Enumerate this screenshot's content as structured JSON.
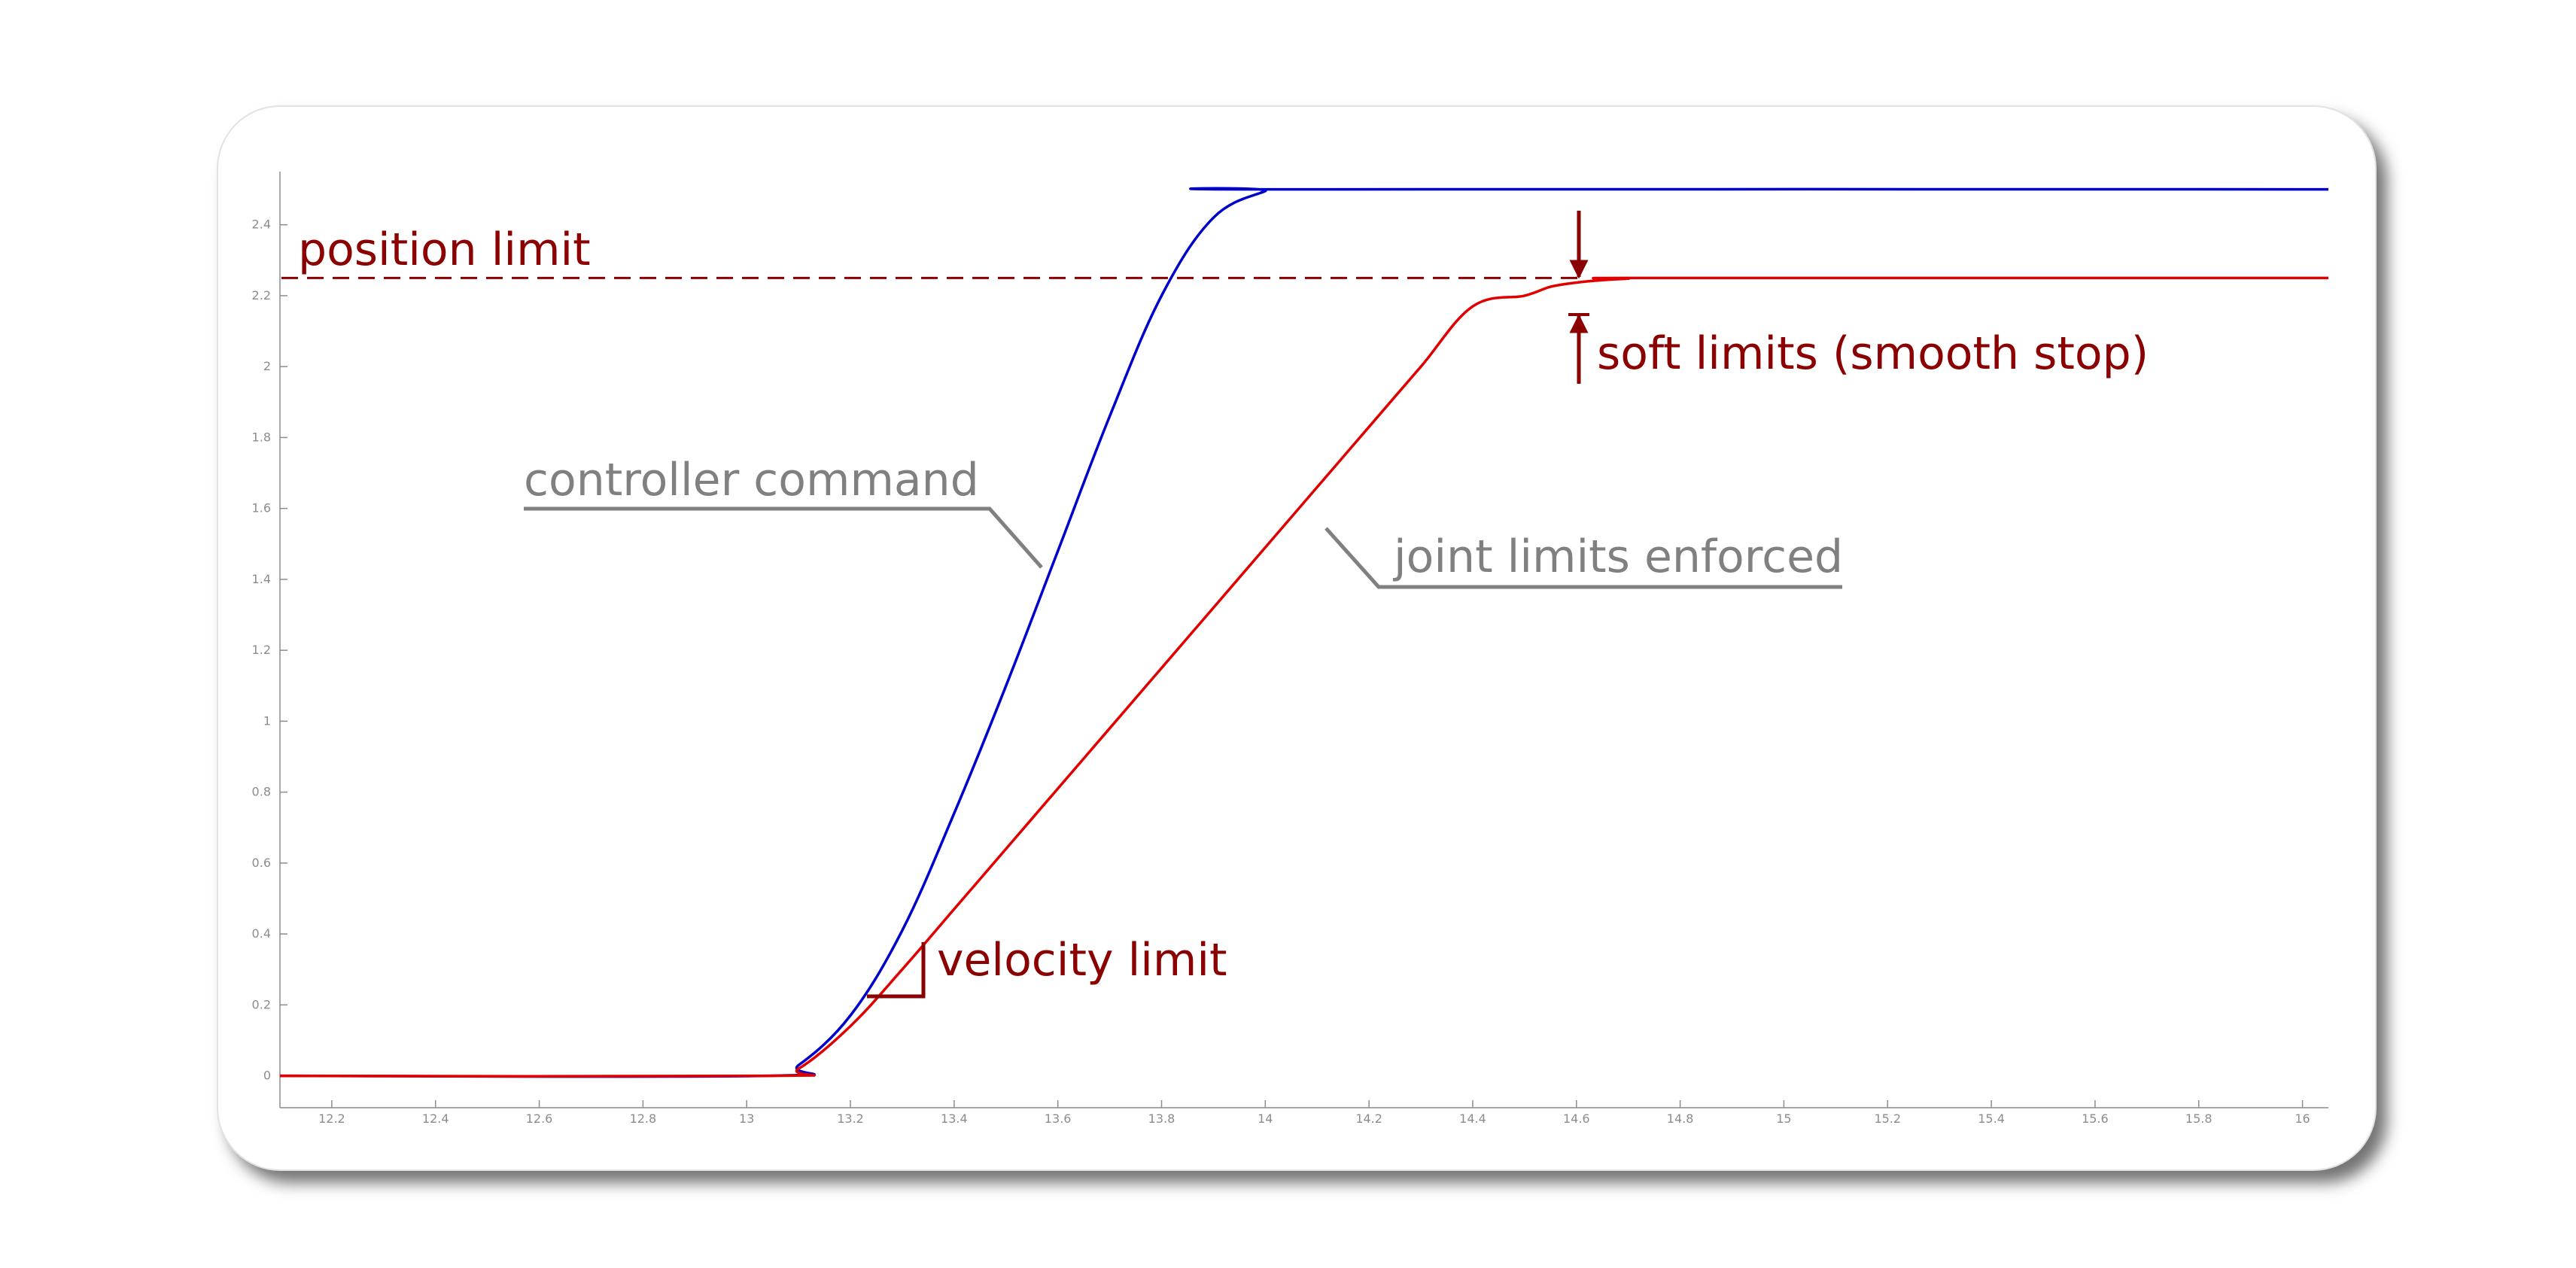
{
  "chart_data": {
    "type": "line",
    "title": "",
    "xlabel": "",
    "ylabel": "",
    "xlim": [
      12.1,
      16.05
    ],
    "ylim": [
      -0.09,
      2.55
    ],
    "grid": false,
    "x_ticks": [
      "12.2",
      "12.4",
      "12.6",
      "12.8",
      "13",
      "13.2",
      "13.4",
      "13.6",
      "13.8",
      "14",
      "14.2",
      "14.4",
      "14.6",
      "14.8",
      "15",
      "15.2",
      "15.4",
      "15.6",
      "15.8",
      "16"
    ],
    "y_ticks": [
      "0",
      "0.2",
      "0.4",
      "0.6",
      "0.8",
      "1",
      "1.2",
      "1.4",
      "1.6",
      "1.8",
      "2",
      "2.2",
      "2.4"
    ],
    "colors": {
      "command": "#0000cc",
      "enforced": "#e00000",
      "annotation": "#8b0000",
      "leader": "#808080"
    },
    "series": [
      {
        "key": "command",
        "x": [
          12.1,
          13.04,
          13.1,
          13.2,
          13.3,
          13.4,
          13.5,
          13.6,
          13.7,
          13.8,
          13.9,
          14.0,
          14.02,
          16.05
        ],
        "y": [
          0,
          0,
          0.03,
          0.17,
          0.41,
          0.74,
          1.1,
          1.48,
          1.86,
          2.2,
          2.42,
          2.495,
          2.5,
          2.5
        ]
      },
      {
        "key": "enforced",
        "x": [
          12.1,
          13.04,
          13.1,
          13.2,
          13.3,
          13.4,
          13.5,
          13.6,
          13.7,
          13.8,
          13.9,
          14.0,
          14.1,
          14.2,
          14.3,
          14.4,
          14.5,
          14.55,
          14.6,
          14.65,
          14.7,
          14.75,
          16.05
        ],
        "y": [
          0,
          0,
          0.02,
          0.14,
          0.3,
          0.47,
          0.64,
          0.81,
          0.98,
          1.15,
          1.32,
          1.49,
          1.66,
          1.83,
          2.0,
          2.17,
          2.2,
          2.225,
          2.237,
          2.244,
          2.248,
          2.25,
          2.25
        ]
      }
    ],
    "position_limit": 2.25,
    "annotations": {
      "position_limit": "position limit",
      "controller_command": "controller command",
      "joint_limits": "joint limits enforced",
      "soft_limits": "soft limits (smooth stop)",
      "velocity_limit": "velocity limit"
    }
  }
}
